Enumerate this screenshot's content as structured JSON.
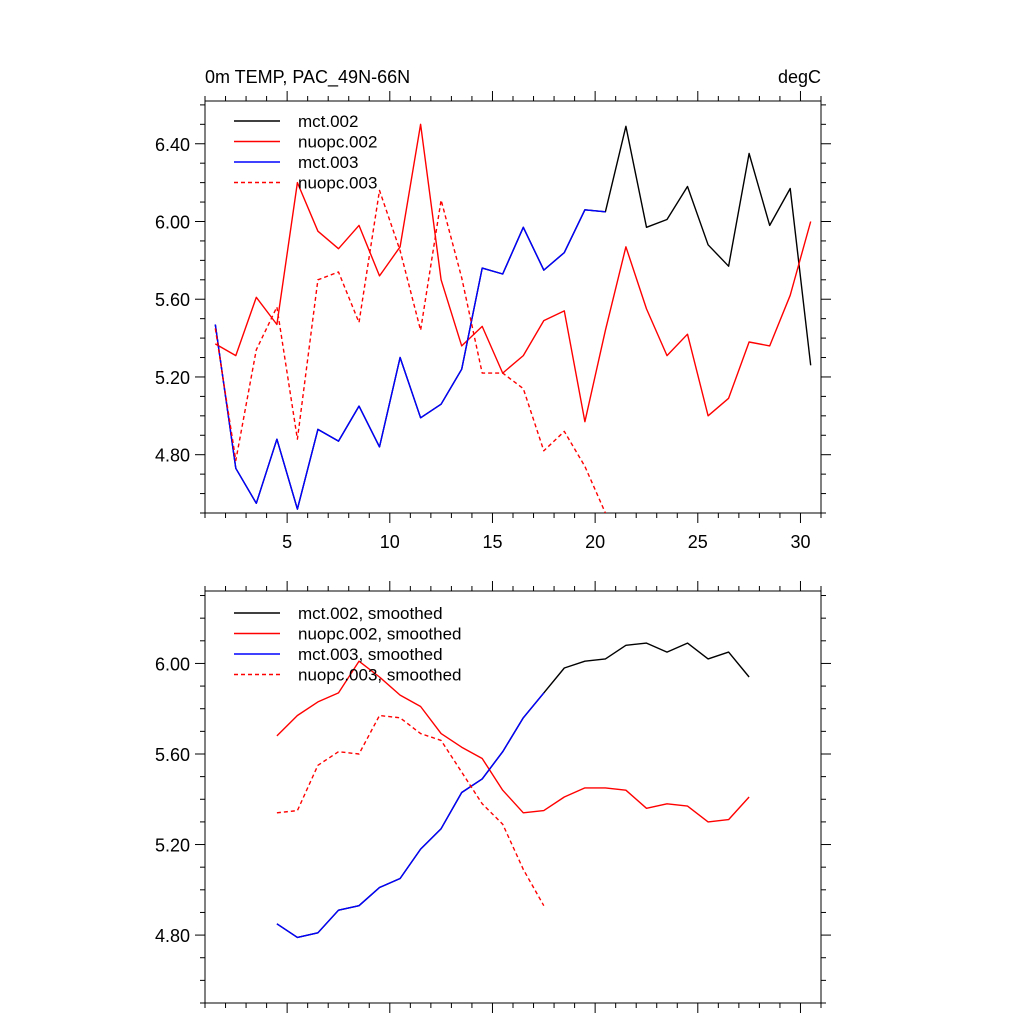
{
  "chart_data": [
    {
      "type": "line",
      "title_left": "0m TEMP, PAC_49N-66N",
      "title_right": "degC",
      "xlim": [
        1,
        31
      ],
      "ylim": [
        4.5,
        6.62
      ],
      "x_ticks": [
        5,
        10,
        15,
        20,
        25,
        30
      ],
      "x_tick_labels": [
        "5",
        "10",
        "15",
        "20",
        "25",
        "30"
      ],
      "y_ticks": [
        4.8,
        5.2,
        5.6,
        6.0,
        6.4
      ],
      "y_tick_labels": [
        "4.80",
        "5.20",
        "5.60",
        "6.00",
        "6.40"
      ],
      "legend_position": "top-left",
      "grid": false,
      "series": [
        {
          "name": "mct.002",
          "color": "#000000",
          "dash": "solid",
          "x": [
            1.5,
            2.5,
            3.5,
            4.5,
            5.5,
            6.5,
            7.5,
            8.5,
            9.5,
            10.5,
            11.5,
            12.5,
            13.5,
            14.5,
            15.5,
            16.5,
            17.5,
            18.5,
            19.5,
            20.5,
            21.5,
            22.5,
            23.5,
            24.5,
            25.5,
            26.5,
            27.5,
            28.5,
            29.5,
            30.5
          ],
          "y": [
            5.47,
            4.73,
            4.55,
            4.88,
            4.52,
            4.93,
            4.87,
            5.05,
            4.84,
            5.3,
            4.99,
            5.06,
            5.24,
            5.76,
            5.73,
            5.97,
            5.75,
            5.84,
            6.06,
            6.05,
            6.49,
            5.97,
            6.01,
            6.18,
            5.88,
            5.77,
            6.35,
            5.98,
            6.17,
            5.26
          ]
        },
        {
          "name": "nuopc.002",
          "color": "#ff0000",
          "dash": "solid",
          "x": [
            1.5,
            2.5,
            3.5,
            4.5,
            5.5,
            6.5,
            7.5,
            8.5,
            9.5,
            10.5,
            11.5,
            12.5,
            13.5,
            14.5,
            15.5,
            16.5,
            17.5,
            18.5,
            19.5,
            20.5,
            21.5,
            22.5,
            23.5,
            24.5,
            25.5,
            26.5,
            27.5,
            28.5,
            29.5,
            30.5
          ],
          "y": [
            5.37,
            5.31,
            5.61,
            5.47,
            6.2,
            5.95,
            5.86,
            5.98,
            5.72,
            5.87,
            6.5,
            5.7,
            5.36,
            5.46,
            5.22,
            5.31,
            5.49,
            5.54,
            4.97,
            5.44,
            5.87,
            5.55,
            5.31,
            5.42,
            5.0,
            5.09,
            5.38,
            5.36,
            5.62,
            6.0
          ]
        },
        {
          "name": "mct.003",
          "color": "#0000ff",
          "dash": "solid",
          "x": [
            1.5,
            2.5,
            3.5,
            4.5,
            5.5,
            6.5,
            7.5,
            8.5,
            9.5,
            10.5,
            11.5,
            12.5,
            13.5,
            14.5,
            15.5,
            16.5,
            17.5,
            18.5,
            19.5,
            20.5
          ],
          "y": [
            5.47,
            4.73,
            4.55,
            4.88,
            4.52,
            4.93,
            4.87,
            5.05,
            4.84,
            5.3,
            4.99,
            5.06,
            5.24,
            5.76,
            5.73,
            5.97,
            5.75,
            5.84,
            6.06,
            6.05
          ]
        },
        {
          "name": "nuopc.003",
          "color": "#ff0000",
          "dash": "dashed",
          "x": [
            1.5,
            2.5,
            3.5,
            4.5,
            5.5,
            6.5,
            7.5,
            8.5,
            9.5,
            10.5,
            11.5,
            12.5,
            13.5,
            14.5,
            15.5,
            16.5,
            17.5,
            18.5,
            19.5,
            20.5
          ],
          "y": [
            5.45,
            4.77,
            5.34,
            5.56,
            4.88,
            5.7,
            5.74,
            5.48,
            6.16,
            5.85,
            5.44,
            6.11,
            5.71,
            5.22,
            5.22,
            5.14,
            4.82,
            4.92,
            4.74,
            4.5
          ]
        }
      ]
    },
    {
      "type": "line",
      "xlim": [
        1,
        31
      ],
      "ylim": [
        4.5,
        6.32
      ],
      "x_ticks": [
        5,
        10,
        15,
        20,
        25,
        30
      ],
      "y_ticks": [
        4.8,
        5.2,
        5.6,
        6.0
      ],
      "y_tick_labels": [
        "4.80",
        "5.20",
        "5.60",
        "6.00"
      ],
      "legend_position": "top-left",
      "grid": false,
      "series": [
        {
          "name": "mct.002, smoothed",
          "color": "#000000",
          "dash": "solid",
          "x": [
            4.5,
            5.5,
            6.5,
            7.5,
            8.5,
            9.5,
            10.5,
            11.5,
            12.5,
            13.5,
            14.5,
            15.5,
            16.5,
            17.5,
            18.5,
            19.5,
            20.5,
            21.5,
            22.5,
            23.5,
            24.5,
            25.5,
            26.5,
            27.5
          ],
          "y": [
            4.85,
            4.79,
            4.81,
            4.91,
            4.93,
            5.01,
            5.05,
            5.18,
            5.27,
            5.43,
            5.49,
            5.61,
            5.76,
            5.87,
            5.98,
            6.01,
            6.02,
            6.08,
            6.09,
            6.05,
            6.09,
            6.02,
            6.05,
            5.94
          ]
        },
        {
          "name": "nuopc.002, smoothed",
          "color": "#ff0000",
          "dash": "solid",
          "x": [
            4.5,
            5.5,
            6.5,
            7.5,
            8.5,
            9.5,
            10.5,
            11.5,
            12.5,
            13.5,
            14.5,
            15.5,
            16.5,
            17.5,
            18.5,
            19.5,
            20.5,
            21.5,
            22.5,
            23.5,
            24.5,
            25.5,
            26.5,
            27.5
          ],
          "y": [
            5.68,
            5.77,
            5.83,
            5.87,
            6.01,
            5.94,
            5.86,
            5.81,
            5.69,
            5.63,
            5.58,
            5.44,
            5.34,
            5.35,
            5.41,
            5.45,
            5.45,
            5.44,
            5.36,
            5.38,
            5.37,
            5.3,
            5.31,
            5.41
          ]
        },
        {
          "name": "mct.003, smoothed",
          "color": "#0000ff",
          "dash": "solid",
          "x": [
            4.5,
            5.5,
            6.5,
            7.5,
            8.5,
            9.5,
            10.5,
            11.5,
            12.5,
            13.5,
            14.5,
            15.5,
            16.5,
            17.5
          ],
          "y": [
            4.85,
            4.79,
            4.81,
            4.91,
            4.93,
            5.01,
            5.05,
            5.18,
            5.27,
            5.43,
            5.49,
            5.61,
            5.76,
            5.87
          ]
        },
        {
          "name": "nuopc.003, smoothed",
          "color": "#ff0000",
          "dash": "dashed",
          "x": [
            4.5,
            5.5,
            6.5,
            7.5,
            8.5,
            9.5,
            10.5,
            11.5,
            12.5,
            13.5,
            14.5,
            15.5,
            16.5,
            17.5
          ],
          "y": [
            5.34,
            5.35,
            5.55,
            5.61,
            5.6,
            5.77,
            5.76,
            5.69,
            5.66,
            5.52,
            5.38,
            5.29,
            5.09,
            4.93
          ]
        }
      ]
    }
  ]
}
